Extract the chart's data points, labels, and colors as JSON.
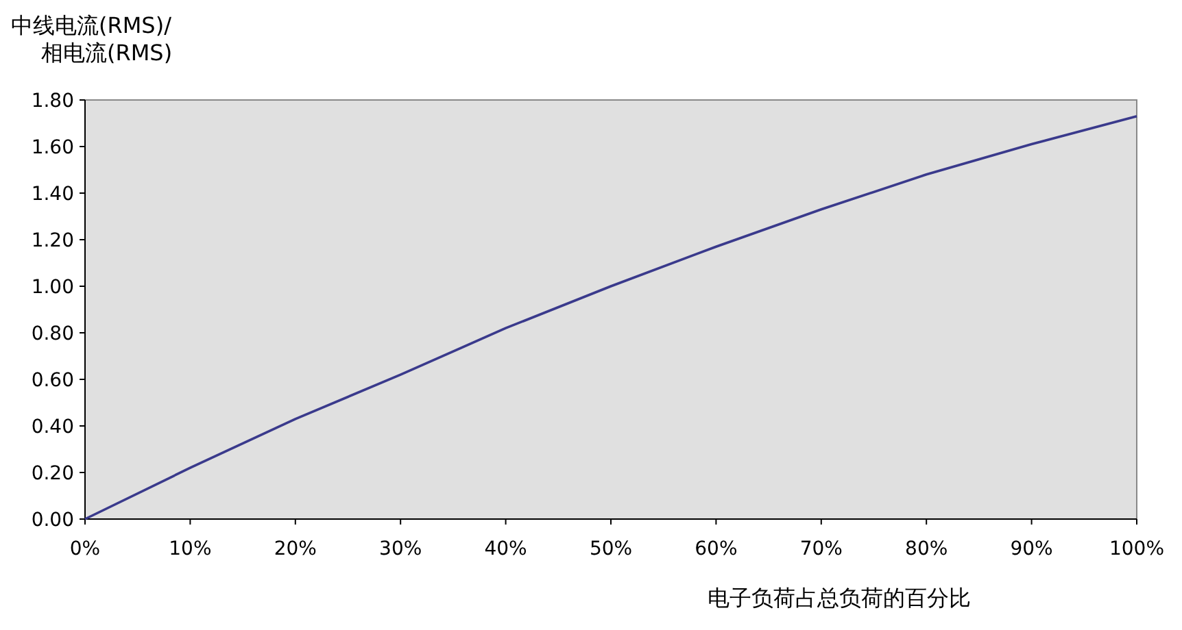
{
  "chart_data": {
    "type": "line",
    "ylabel": "中线电流(RMS)/相电流(RMS)",
    "xlabel": "电子负荷占总负荷的百分比",
    "x": [
      0,
      10,
      20,
      30,
      40,
      50,
      60,
      70,
      80,
      90,
      100
    ],
    "series": [
      {
        "color": "#3a3a8c",
        "values": [
          0,
          0.22,
          0.43,
          0.62,
          0.82,
          1.0,
          1.17,
          1.33,
          1.48,
          1.61,
          1.73
        ]
      }
    ],
    "xlim": [
      0,
      100
    ],
    "xticks": [
      {
        "value": 0,
        "label": "0%"
      },
      {
        "value": 10,
        "label": "10%"
      },
      {
        "value": 20,
        "label": "20%"
      },
      {
        "value": 30,
        "label": "30%"
      },
      {
        "value": 40,
        "label": "40%"
      },
      {
        "value": 50,
        "label": "50%"
      },
      {
        "value": 60,
        "label": "60%"
      },
      {
        "value": 70,
        "label": "70%"
      },
      {
        "value": 80,
        "label": "80%"
      },
      {
        "value": 90,
        "label": "90%"
      },
      {
        "value": 100,
        "label": "100%"
      }
    ],
    "ylim": [
      0,
      1.8
    ],
    "yticks": [
      {
        "value": 0,
        "label": "0.00"
      },
      {
        "value": 0.2,
        "label": "0.20"
      },
      {
        "value": 0.4,
        "label": "0.40"
      },
      {
        "value": 0.6,
        "label": "0.60"
      },
      {
        "value": 0.8,
        "label": "0.80"
      },
      {
        "value": 1.0,
        "label": "1.00"
      },
      {
        "value": 1.2,
        "label": "1.20"
      },
      {
        "value": 1.4,
        "label": "1.40"
      },
      {
        "value": 1.6,
        "label": "1.60"
      },
      {
        "value": 1.8,
        "label": "1.80"
      }
    ]
  }
}
